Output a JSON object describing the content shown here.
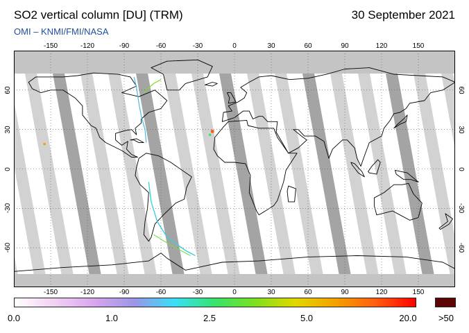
{
  "header": {
    "title": "SO2 vertical column [DU] (TRM)",
    "date": "30 September 2021",
    "credit": "OMI  –  KNMI/FMI/NASA"
  },
  "map": {
    "projection": "equirectangular",
    "lon_ticks": [
      "-150",
      "-120",
      "-90",
      "-60",
      "-30",
      "0",
      "30",
      "60",
      "90",
      "120",
      "150"
    ],
    "lat_ticks": [
      "60",
      "30",
      "0",
      "-30",
      "-60"
    ],
    "lon_tick_values": [
      -150,
      -120,
      -90,
      -60,
      -30,
      0,
      30,
      60,
      90,
      120,
      150
    ],
    "lat_tick_values": [
      60,
      30,
      0,
      -30,
      -60
    ],
    "grid": "dotted",
    "colors": {
      "no_data_polar": "#c4c4c4",
      "swath_gap_light": "#d2d2d2",
      "swath_gap_dark": "#a4a4a4",
      "coastline": "#000000"
    }
  },
  "colorbar": {
    "labels": [
      "0.0",
      "1.0",
      "2.5",
      "5.0",
      "20.0",
      ">50"
    ],
    "label_positions": [
      0.0,
      0.243,
      0.487,
      0.727,
      0.979
    ],
    "colors": [
      "#ffffff",
      "#f2d0f4",
      "#d8a6ee",
      "#9a96e6",
      "#38e0f8",
      "#36e36c",
      "#7ee01e",
      "#e2d800",
      "#f4a000",
      "#ff5e10",
      "#ff0000"
    ],
    "over_color": "#5c0505"
  }
}
